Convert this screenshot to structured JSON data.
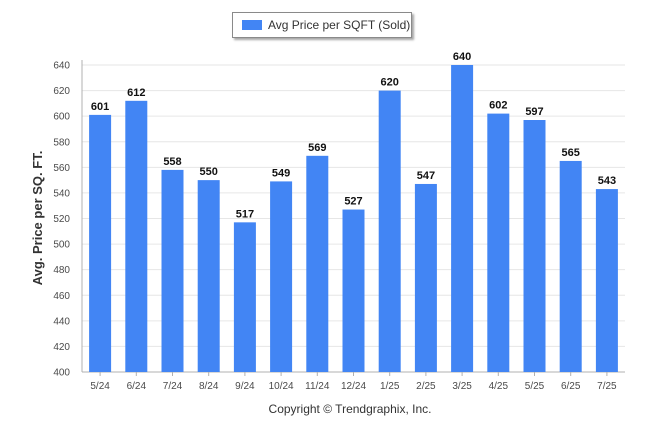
{
  "chart_data": {
    "type": "bar",
    "title": "",
    "xlabel": "",
    "ylabel": "Avg. Price per SQ. FT.",
    "ylim": [
      400,
      640
    ],
    "yticks": [
      400,
      420,
      440,
      460,
      480,
      500,
      520,
      540,
      560,
      580,
      600,
      620,
      640
    ],
    "grid": true,
    "legend_position": "top-center",
    "categories": [
      "5/24",
      "6/24",
      "7/24",
      "8/24",
      "9/24",
      "10/24",
      "11/24",
      "12/24",
      "1/25",
      "2/25",
      "3/25",
      "4/25",
      "5/25",
      "6/25",
      "7/25"
    ],
    "series": [
      {
        "name": "Avg Price per SQFT (Sold)",
        "color": "#4285f4",
        "values": [
          601,
          612,
          558,
          550,
          517,
          549,
          569,
          527,
          620,
          547,
          640,
          602,
          597,
          565,
          543
        ]
      }
    ]
  },
  "footer": {
    "copyright": "Copyright © Trendgraphix, Inc."
  },
  "colors": {
    "bar": "#4285f4",
    "grid": "#e6e6e6",
    "axis": "#b0b0b0"
  }
}
